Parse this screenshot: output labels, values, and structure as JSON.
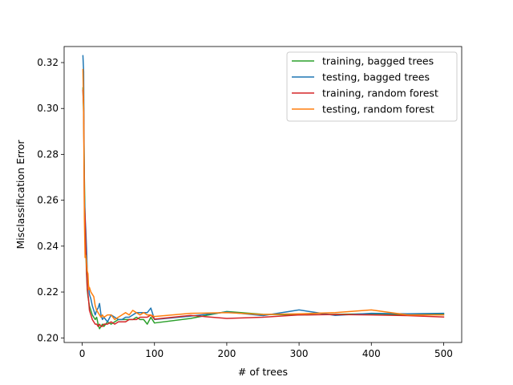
{
  "chart_data": {
    "type": "line",
    "title": "",
    "xlabel": "# of trees",
    "ylabel": "Misclassification Error",
    "xlim": [
      -25,
      525
    ],
    "ylim": [
      0.198,
      0.327
    ],
    "xticks": [
      0,
      100,
      200,
      300,
      400,
      500
    ],
    "yticks": [
      0.2,
      0.22,
      0.24,
      0.26,
      0.28,
      0.3,
      0.32
    ],
    "ytick_labels": [
      "0.20",
      "0.22",
      "0.24",
      "0.26",
      "0.28",
      "0.30",
      "0.32"
    ],
    "grid": false,
    "legend_position": "top-right",
    "series": [
      {
        "name": "training, bagged trees",
        "color": "#2ca02c",
        "x": [
          1,
          2,
          3,
          4,
          5,
          6,
          7,
          8,
          9,
          10,
          12,
          14,
          16,
          18,
          20,
          22,
          24,
          26,
          28,
          30,
          35,
          40,
          45,
          50,
          55,
          60,
          65,
          70,
          75,
          80,
          85,
          90,
          95,
          100,
          150,
          200,
          250,
          300,
          350,
          400,
          450,
          500
        ],
        "y": [
          0.309,
          0.297,
          0.27,
          0.251,
          0.238,
          0.228,
          0.221,
          0.218,
          0.216,
          0.214,
          0.212,
          0.21,
          0.209,
          0.208,
          0.209,
          0.206,
          0.204,
          0.205,
          0.206,
          0.205,
          0.207,
          0.206,
          0.207,
          0.208,
          0.208,
          0.208,
          0.208,
          0.208,
          0.209,
          0.208,
          0.208,
          0.206,
          0.209,
          0.2065,
          0.2085,
          0.2115,
          0.2103,
          0.21,
          0.2103,
          0.2105,
          0.21,
          0.2104
        ]
      },
      {
        "name": "testing, bagged trees",
        "color": "#1f77b4",
        "x": [
          1,
          2,
          3,
          4,
          5,
          6,
          7,
          8,
          9,
          10,
          12,
          14,
          16,
          18,
          20,
          22,
          24,
          26,
          28,
          30,
          35,
          40,
          45,
          50,
          55,
          60,
          65,
          70,
          75,
          80,
          85,
          90,
          95,
          100,
          150,
          200,
          250,
          300,
          350,
          400,
          450,
          500
        ],
        "y": [
          0.323,
          0.316,
          0.262,
          0.253,
          0.247,
          0.239,
          0.229,
          0.225,
          0.222,
          0.219,
          0.217,
          0.214,
          0.212,
          0.21,
          0.212,
          0.213,
          0.215,
          0.21,
          0.208,
          0.209,
          0.207,
          0.21,
          0.209,
          0.208,
          0.208,
          0.209,
          0.209,
          0.21,
          0.211,
          0.211,
          0.211,
          0.211,
          0.213,
          0.208,
          0.2095,
          0.2113,
          0.2097,
          0.2122,
          0.2098,
          0.2107,
          0.2105,
          0.2107
        ]
      },
      {
        "name": "training, random forest",
        "color": "#d62728",
        "x": [
          1,
          2,
          3,
          4,
          5,
          6,
          7,
          8,
          9,
          10,
          12,
          14,
          16,
          18,
          20,
          22,
          24,
          26,
          28,
          30,
          35,
          40,
          45,
          50,
          55,
          60,
          65,
          70,
          75,
          80,
          85,
          90,
          95,
          100,
          150,
          200,
          250,
          300,
          350,
          400,
          450,
          500
        ],
        "y": [
          0.308,
          0.3,
          0.258,
          0.252,
          0.24,
          0.23,
          0.222,
          0.219,
          0.216,
          0.212,
          0.21,
          0.208,
          0.207,
          0.206,
          0.206,
          0.205,
          0.206,
          0.205,
          0.205,
          0.206,
          0.206,
          0.207,
          0.206,
          0.207,
          0.207,
          0.207,
          0.208,
          0.208,
          0.208,
          0.209,
          0.209,
          0.209,
          0.21,
          0.2082,
          0.2098,
          0.2085,
          0.209,
          0.21,
          0.2102,
          0.21,
          0.2097,
          0.2091
        ]
      },
      {
        "name": "testing, random forest",
        "color": "#ff7f0e",
        "x": [
          1,
          2,
          3,
          4,
          5,
          6,
          7,
          8,
          9,
          10,
          12,
          14,
          16,
          18,
          20,
          22,
          24,
          26,
          28,
          30,
          35,
          40,
          45,
          50,
          55,
          60,
          65,
          70,
          75,
          80,
          85,
          90,
          95,
          100,
          150,
          200,
          250,
          300,
          350,
          400,
          450,
          500
        ],
        "y": [
          0.317,
          0.3,
          0.252,
          0.235,
          0.236,
          0.233,
          0.229,
          0.228,
          0.221,
          0.222,
          0.22,
          0.219,
          0.218,
          0.214,
          0.212,
          0.211,
          0.21,
          0.209,
          0.21,
          0.209,
          0.21,
          0.21,
          0.208,
          0.209,
          0.21,
          0.211,
          0.21,
          0.212,
          0.211,
          0.21,
          0.211,
          0.21,
          0.21,
          0.2093,
          0.2107,
          0.211,
          0.2102,
          0.2105,
          0.211,
          0.2122,
          0.21,
          0.21
        ]
      }
    ]
  }
}
